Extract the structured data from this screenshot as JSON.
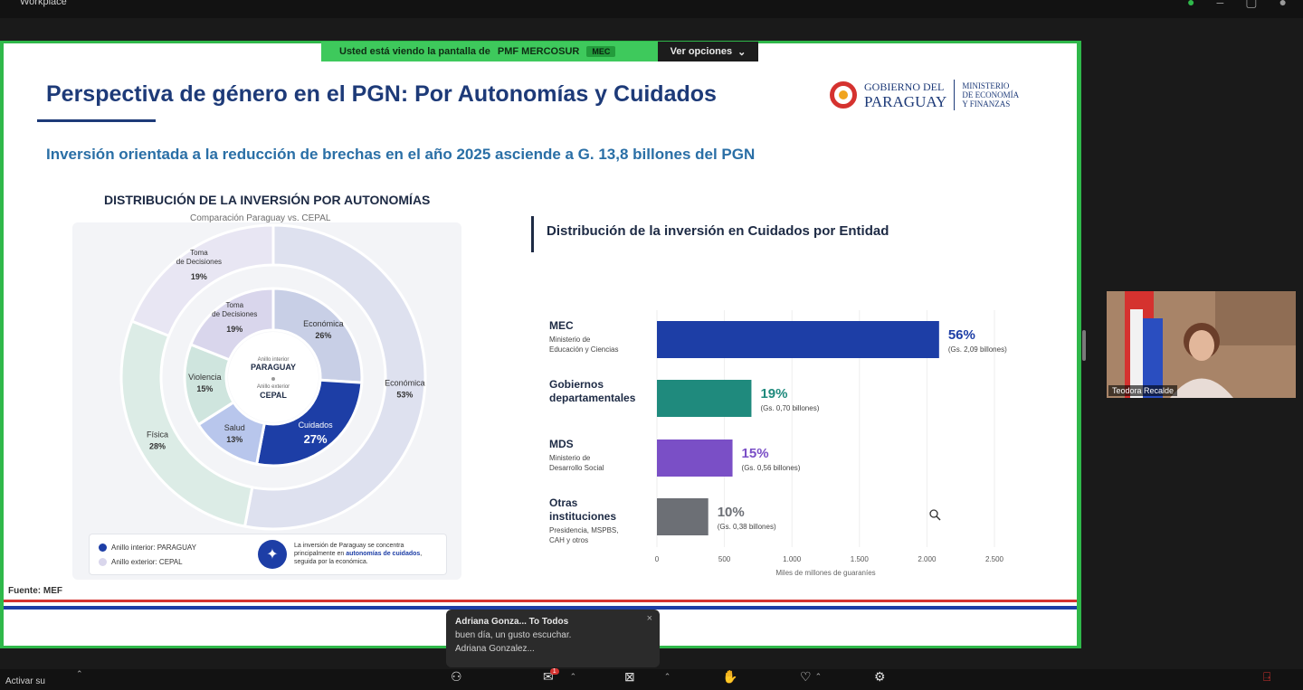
{
  "window": {
    "title": "Workplace"
  },
  "share_banner": {
    "viewing_text": "Usted está viendo la pantalla de",
    "presenter": "PMF MERCOSUR",
    "tag": "MEC",
    "options_label": "Ver opciones"
  },
  "slide": {
    "title": "Perspectiva de género en el PGN: Por Autonomías y Cuidados",
    "subtitle": "Inversión orientada a la reducción de brechas en el año 2025 asciende a G. 13,8 billones del PGN",
    "logo": {
      "gov_line1": "GOBIERNO DEL",
      "gov_line2": "PARAGUAY",
      "ministry_line1": "MINISTERIO",
      "ministry_line2": "DE ECONOMÍA",
      "ministry_line3": "Y FINANZAS"
    },
    "source": "Fuente: MEF"
  },
  "donut_chart": {
    "title": "DISTRIBUCIÓN DE LA INVERSIÓN POR AUTONOMÍAS",
    "subtitle": "Comparación Paraguay vs. CEPAL",
    "center": {
      "inner_caption": "Anillo interior",
      "inner_label": "PARAGUAY",
      "outer_caption": "Anillo exterior",
      "outer_label": "CEPAL"
    },
    "legend": {
      "inner": "Anillo interior: PARAGUAY",
      "outer": "Anillo exterior: CEPAL"
    },
    "note_pre": "La inversión de Paraguay se concentra principalmente en",
    "note_bold": "autonomías de cuidados",
    "note_post": ", seguida por la económica.",
    "colors": {
      "inner_legend": "#1d3ea6",
      "outer_legend": "#d9d6ec"
    }
  },
  "bar_chart": {
    "title": "Distribución de la inversión en Cuidados por Entidad",
    "xlabel": "Miles de millones de guaraníes",
    "ticks": [
      "0",
      "500",
      "1.000",
      "1.500",
      "2.000",
      "2.500"
    ],
    "entities": [
      {
        "name": "MEC",
        "desc1": "Ministerio de",
        "desc2": "Educación y Ciencias",
        "pct": "56%",
        "amount": "(Gs. 2,09 billones)"
      },
      {
        "name": "Gobiernos",
        "name2": "departamentales",
        "pct": "19%",
        "amount": "(Gs. 0,70 billones)"
      },
      {
        "name": "MDS",
        "desc1": "Ministerio de",
        "desc2": "Desarrollo Social",
        "pct": "15%",
        "amount": "(Gs. 0,56 billones)"
      },
      {
        "name": "Otras",
        "name2": "instituciones",
        "desc1": "Presidencia, MSPBS,",
        "desc2": "CAH y otros",
        "pct": "10%",
        "amount": "(Gs. 0,38 billones)"
      }
    ]
  },
  "chart_data": [
    {
      "type": "pie",
      "title": "DISTRIBUCIÓN DE LA INVERSIÓN POR AUTONOMÍAS",
      "subtitle": "Comparación Paraguay vs. CEPAL",
      "rings": [
        {
          "name": "PARAGUAY",
          "ring": "inner",
          "slices": [
            {
              "label": "Económica",
              "value": 26,
              "color": "#c8cfe6"
            },
            {
              "label": "Cuidados",
              "value": 27,
              "color": "#1d3ea6"
            },
            {
              "label": "Salud",
              "value": 13,
              "color": "#b8c6ec"
            },
            {
              "label": "Violencia",
              "value": 15,
              "color": "#cfe5de"
            },
            {
              "label": "Toma de Decisiones",
              "value": 19,
              "color": "#d9d6ec"
            }
          ]
        },
        {
          "name": "CEPAL",
          "ring": "outer",
          "slices": [
            {
              "label": "Económica",
              "value": 53,
              "color": "#dee1ef"
            },
            {
              "label": "Física",
              "value": 28,
              "color": "#dcece6"
            },
            {
              "label": "Toma de Decisiones",
              "value": 19,
              "color": "#e8e6f3"
            }
          ]
        }
      ]
    },
    {
      "type": "bar",
      "orientation": "horizontal",
      "title": "Distribución de la inversión en Cuidados por Entidad",
      "categories": [
        "MEC",
        "Gobiernos departamentales",
        "MDS",
        "Otras instituciones"
      ],
      "values": [
        2090,
        700,
        560,
        380
      ],
      "percentages": [
        56,
        19,
        15,
        10
      ],
      "colors": [
        "#1d3ea6",
        "#1f8a7d",
        "#7a4fc6",
        "#6c6f75"
      ],
      "xlabel": "Miles de millones de guaraníes",
      "xlim": [
        0,
        2500
      ]
    }
  ],
  "chat": {
    "sender": "Adriana Gonza... To Todos",
    "message": "buen día, un gusto escuchar.",
    "from": "Adriana Gonzalez..."
  },
  "participant": {
    "name": "Teodora Recalde"
  },
  "bottombar": {
    "label": "Activar su"
  }
}
